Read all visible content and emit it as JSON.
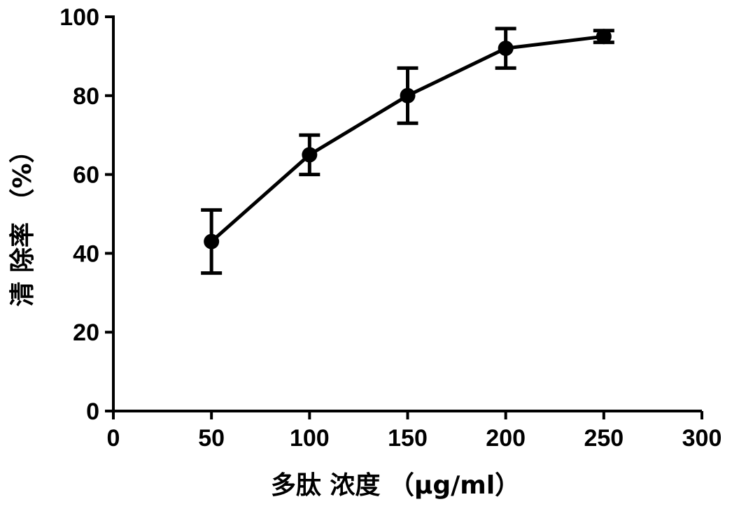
{
  "chart_data": {
    "type": "line",
    "title": "",
    "xlabel": "多肽 浓度 （μg/ml）",
    "ylabel": "清 除率 （%）",
    "xlim": [
      0,
      300
    ],
    "ylim": [
      0,
      100
    ],
    "xticks": [
      0,
      50,
      100,
      150,
      200,
      250,
      300
    ],
    "yticks": [
      0,
      20,
      40,
      60,
      80,
      100
    ],
    "x_tick_labels": [
      "0",
      "50",
      "100",
      "150",
      "200",
      "250",
      "300"
    ],
    "y_tick_labels": [
      "0",
      "20",
      "40",
      "60",
      "80",
      "100"
    ],
    "grid": false,
    "legend": "none",
    "color": "#000000",
    "series": [
      {
        "x": [
          50,
          100,
          150,
          200,
          250
        ],
        "y": [
          43,
          65,
          80,
          92,
          95
        ],
        "error": [
          8,
          5,
          7,
          5,
          1.5
        ]
      }
    ]
  }
}
